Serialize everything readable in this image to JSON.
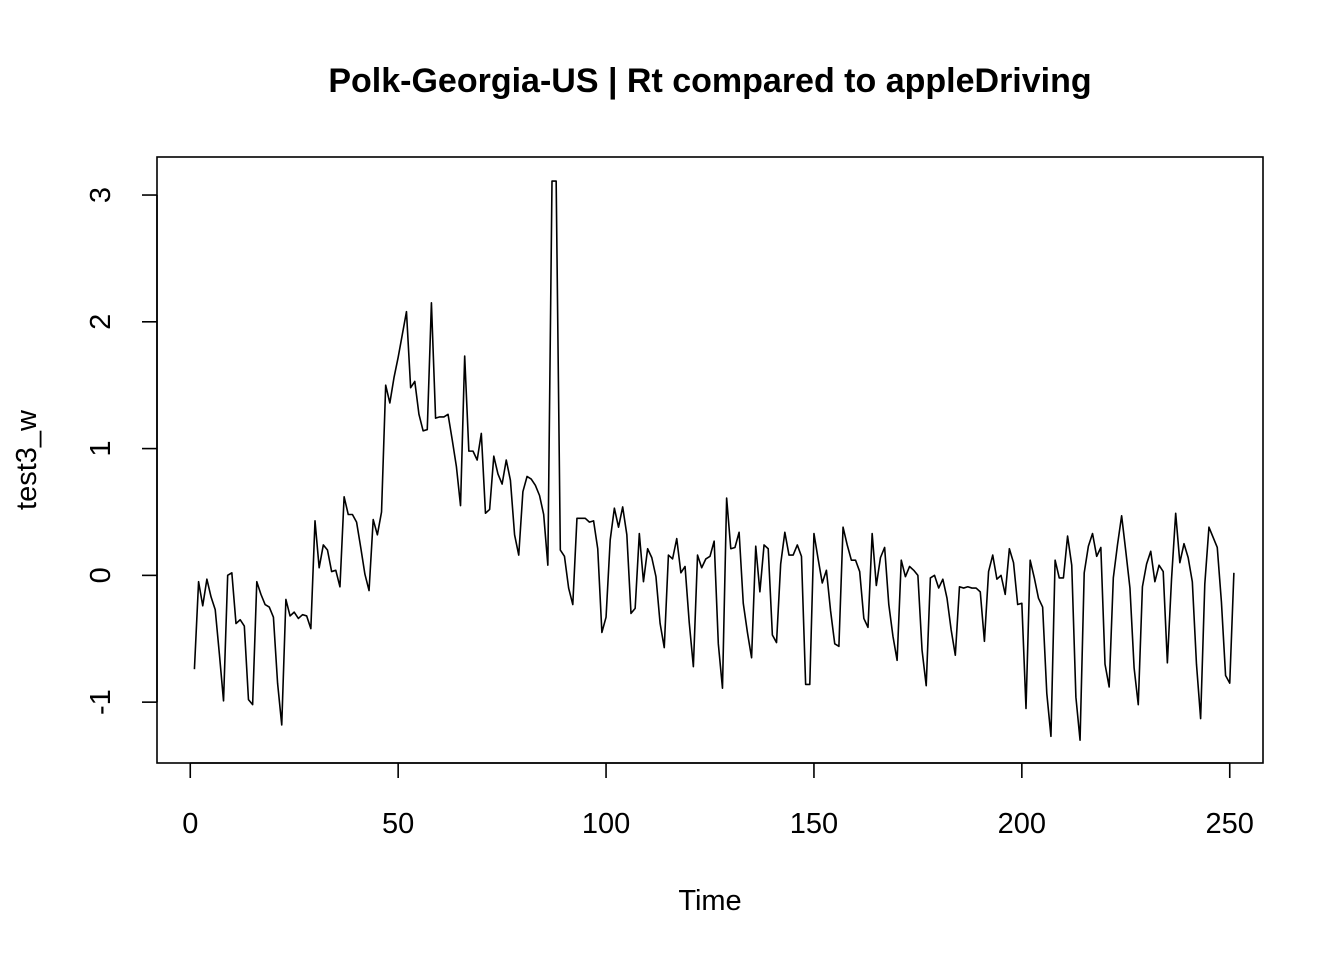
{
  "chart_data": {
    "type": "line",
    "title": "Polk-Georgia-US | Rt compared to appleDriving",
    "xlabel": "Time",
    "ylabel": "test3_w",
    "xlim": [
      -8,
      258
    ],
    "ylim": [
      -1.48,
      3.3
    ],
    "x_ticks": [
      0,
      50,
      100,
      150,
      200,
      250
    ],
    "y_ticks": [
      -1,
      0,
      1,
      2,
      3
    ],
    "x_tick_labels": [
      "0",
      "50",
      "100",
      "150",
      "200",
      "250"
    ],
    "y_tick_labels": [
      "-1",
      "0",
      "1",
      "2",
      "3"
    ],
    "grid": false,
    "legend": "none",
    "line_color": "#000000",
    "series": [
      {
        "x_start": 1,
        "x_step": 1,
        "values": [
          -0.74,
          -0.05,
          -0.24,
          -0.03,
          -0.17,
          -0.27,
          -0.62,
          -0.99,
          0.0,
          0.02,
          -0.38,
          -0.35,
          -0.4,
          -0.98,
          -1.02,
          -0.05,
          -0.15,
          -0.23,
          -0.25,
          -0.33,
          -0.85,
          -1.18,
          -0.19,
          -0.32,
          -0.29,
          -0.34,
          -0.31,
          -0.32,
          -0.42,
          0.43,
          0.06,
          0.24,
          0.2,
          0.03,
          0.04,
          -0.09,
          0.62,
          0.48,
          0.48,
          0.42,
          0.22,
          0.01,
          -0.12,
          0.44,
          0.32,
          0.5,
          1.5,
          1.36,
          1.56,
          1.72,
          1.9,
          2.08,
          1.48,
          1.53,
          1.27,
          1.14,
          1.15,
          2.15,
          1.24,
          1.25,
          1.25,
          1.27,
          1.07,
          0.86,
          0.55,
          1.73,
          0.98,
          0.98,
          0.91,
          1.12,
          0.49,
          0.52,
          0.94,
          0.8,
          0.72,
          0.91,
          0.75,
          0.32,
          0.16,
          0.66,
          0.78,
          0.76,
          0.71,
          0.63,
          0.48,
          0.08,
          3.11,
          3.11,
          0.2,
          0.15,
          -0.1,
          -0.23,
          0.45,
          0.45,
          0.45,
          0.42,
          0.43,
          0.21,
          -0.45,
          -0.33,
          0.28,
          0.53,
          0.38,
          0.54,
          0.32,
          -0.3,
          -0.26,
          0.33,
          -0.05,
          0.21,
          0.14,
          -0.01,
          -0.38,
          -0.57,
          0.16,
          0.13,
          0.29,
          0.02,
          0.07,
          -0.37,
          -0.72,
          0.16,
          0.06,
          0.13,
          0.15,
          0.27,
          -0.54,
          -0.89,
          0.61,
          0.21,
          0.22,
          0.34,
          -0.22,
          -0.45,
          -0.65,
          0.23,
          -0.13,
          0.24,
          0.21,
          -0.47,
          -0.53,
          0.09,
          0.34,
          0.16,
          0.16,
          0.24,
          0.15,
          -0.86,
          -0.86,
          0.33,
          0.13,
          -0.06,
          0.04,
          -0.28,
          -0.54,
          -0.56,
          0.38,
          0.24,
          0.12,
          0.12,
          0.03,
          -0.34,
          -0.41,
          0.33,
          -0.08,
          0.14,
          0.22,
          -0.23,
          -0.48,
          -0.67,
          0.12,
          -0.01,
          0.07,
          0.04,
          0.0,
          -0.59,
          -0.87,
          -0.02,
          0.0,
          -0.1,
          -0.03,
          -0.18,
          -0.43,
          -0.63,
          -0.09,
          -0.1,
          -0.09,
          -0.1,
          -0.1,
          -0.13,
          -0.52,
          0.03,
          0.16,
          -0.03,
          0.0,
          -0.15,
          0.21,
          0.1,
          -0.23,
          -0.22,
          -1.05,
          0.12,
          -0.02,
          -0.18,
          -0.25,
          -0.93,
          -1.27,
          0.12,
          -0.02,
          -0.02,
          0.31,
          0.08,
          -0.96,
          -1.3,
          0.02,
          0.23,
          0.33,
          0.15,
          0.22,
          -0.7,
          -0.88,
          -0.02,
          0.24,
          0.47,
          0.19,
          -0.1,
          -0.73,
          -1.02,
          -0.09,
          0.09,
          0.19,
          -0.05,
          0.08,
          0.03,
          -0.69,
          -0.03,
          0.49,
          0.1,
          0.25,
          0.14,
          -0.05,
          -0.7,
          -1.13,
          -0.07,
          0.38,
          0.3,
          0.22,
          -0.21,
          -0.79,
          -0.85,
          0.02
        ]
      }
    ]
  }
}
